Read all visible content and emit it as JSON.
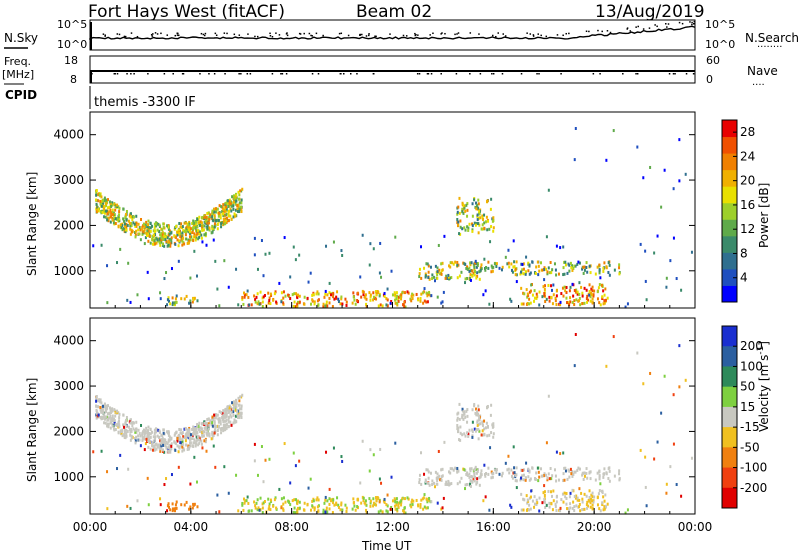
{
  "header": {
    "site": "Fort Hays West (fitACF)",
    "beam": "Beam 02",
    "date": "13/Aug/2019"
  },
  "labels": {
    "nsky": "N.Sky",
    "nsearch": "N.Search",
    "freq": "Freq.",
    "freq_unit": "[MHz]",
    "nave": "Nave",
    "cpid": "CPID",
    "mode": "themis -3300 IF",
    "noise_top": "10^5",
    "noise_bottom": "10^0",
    "freq_top": "18",
    "freq_bottom": "8",
    "nave_top": "60",
    "nave_bottom": "0",
    "nsearch_dots": "········",
    "nave_dots": "····"
  },
  "chart_data": [
    {
      "type": "heatmap",
      "panel": "power",
      "ylabel": "Slant Range [km]",
      "xlabel": "",
      "x_ticks": [
        "00:00",
        "04:00",
        "08:00",
        "12:00",
        "16:00",
        "20:00",
        "00:00"
      ],
      "y_ticks": [
        1000,
        2000,
        3000,
        4000
      ],
      "ylim": [
        180,
        4500
      ],
      "xlim_hours": [
        0,
        24
      ],
      "colorbar": {
        "label": "Power [dB]",
        "ticks": [
          4,
          8,
          12,
          16,
          20,
          24,
          28
        ],
        "colors": [
          "#0000ff",
          "#1f4fbf",
          "#2f6f8f",
          "#3a8a6a",
          "#5faa4a",
          "#9dcf2a",
          "#e8e000",
          "#f0b000",
          "#f08000",
          "#f05000",
          "#e80000"
        ],
        "range": [
          0,
          30
        ]
      },
      "regions": [
        {
          "t0": 0.2,
          "t1": 6.0,
          "r0": 1700,
          "r1": 2700,
          "note": "arc"
        },
        {
          "t0": 3.0,
          "t1": 4.5,
          "r0": 250,
          "r1": 450
        },
        {
          "t0": 6.0,
          "t1": 13.5,
          "r0": 200,
          "r1": 550
        },
        {
          "t0": 13.0,
          "t1": 15.5,
          "r0": 800,
          "r1": 1200
        },
        {
          "t0": 14.5,
          "t1": 16.0,
          "r0": 1800,
          "r1": 2600
        },
        {
          "t0": 15.0,
          "t1": 21.0,
          "r0": 900,
          "r1": 1200
        },
        {
          "t0": 17.0,
          "t1": 20.5,
          "r0": 250,
          "r1": 700
        }
      ]
    },
    {
      "type": "heatmap",
      "panel": "velocity",
      "ylabel": "Slant Range [km]",
      "xlabel": "Time UT",
      "x_ticks": [
        "00:00",
        "04:00",
        "08:00",
        "12:00",
        "16:00",
        "20:00",
        "00:00"
      ],
      "y_ticks": [
        1000,
        2000,
        3000,
        4000
      ],
      "ylim": [
        180,
        4500
      ],
      "xlim_hours": [
        0,
        24
      ],
      "colorbar": {
        "label": "Velocity [m s^-1]",
        "ticks": [
          "200",
          "100",
          "50",
          "15",
          "-15",
          "-50",
          "-100",
          "-200"
        ],
        "colors": [
          "#1a2fd0",
          "#2b5fa0",
          "#2e8a5a",
          "#7ed040",
          "#c8c8c0",
          "#f0c020",
          "#f08010",
          "#f04010",
          "#e00000"
        ]
      }
    }
  ]
}
